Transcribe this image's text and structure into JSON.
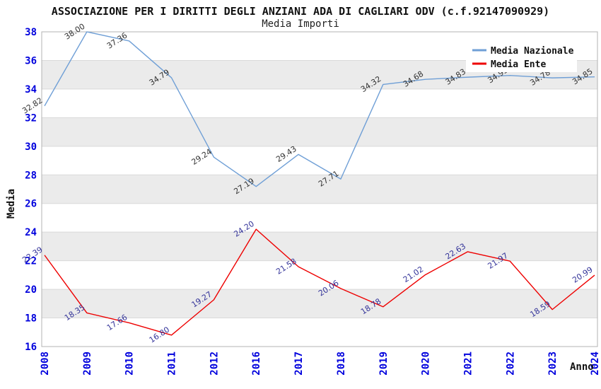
{
  "header": {
    "title": "ASSOCIAZIONE PER I DIRITTI DEGLI ANZIANI ADA DI CAGLIARI ODV (c.f.92147090929)",
    "subtitle": "Media Importi"
  },
  "colors": {
    "axis_tick_text": "#0000dd",
    "plot_border": "#b3b3b3",
    "band_fill": "#ebebeb",
    "gridline": "#d9d9d9",
    "legend_background": "#ffffff",
    "series_nazionale": "#6f9fd6",
    "series_ente": "#ee0000",
    "label_nazionale": "#333333",
    "label_ente": "#333399",
    "axis_title_text": "#111111"
  },
  "chart_data": {
    "type": "line",
    "title": "ASSOCIAZIONE PER I DIRITTI DEGLI ANZIANI ADA DI CAGLIARI ODV (c.f.92147090929)",
    "subtitle": "Media Importi",
    "xlabel": "Anno",
    "ylabel": "Media",
    "x_categories": [
      "2008",
      "2009",
      "2010",
      "2011",
      "2012",
      "2016",
      "2017",
      "2018",
      "2019",
      "2020",
      "2021",
      "2022",
      "2023",
      "2024"
    ],
    "ylim": [
      16,
      38
    ],
    "ytick_step": 2,
    "grid": "horizontal-bands-alternating",
    "legend_position": "top-right-inside",
    "legend": [
      "Media Nazionale",
      "Media Ente"
    ],
    "series": [
      {
        "name": "Media Nazionale",
        "color_key": "series_nazionale",
        "label_color_key": "label_nazionale",
        "values": [
          32.82,
          38.0,
          37.36,
          34.79,
          29.24,
          27.19,
          29.43,
          27.71,
          34.32,
          34.68,
          34.83,
          34.95,
          34.78,
          34.85
        ],
        "labels": [
          "32.82",
          "38.00",
          "37.36",
          "34.79",
          "29.24",
          "27.19",
          "29.43",
          "27.71",
          "34.32",
          "34.68",
          "34.83",
          "34.95",
          "34.78",
          "34.85"
        ]
      },
      {
        "name": "Media Ente",
        "color_key": "series_ente",
        "label_color_key": "label_ente",
        "values": [
          22.39,
          18.35,
          17.66,
          16.8,
          19.27,
          24.2,
          21.58,
          20.06,
          18.78,
          21.02,
          22.63,
          21.97,
          18.59,
          20.99
        ],
        "labels": [
          "22.39",
          "18.35",
          "17.66",
          "16.80",
          "19.27",
          "24.20",
          "21.58",
          "20.06",
          "18.78",
          "21.02",
          "22.63",
          "21.97",
          "18.59",
          "20.99"
        ]
      }
    ]
  }
}
